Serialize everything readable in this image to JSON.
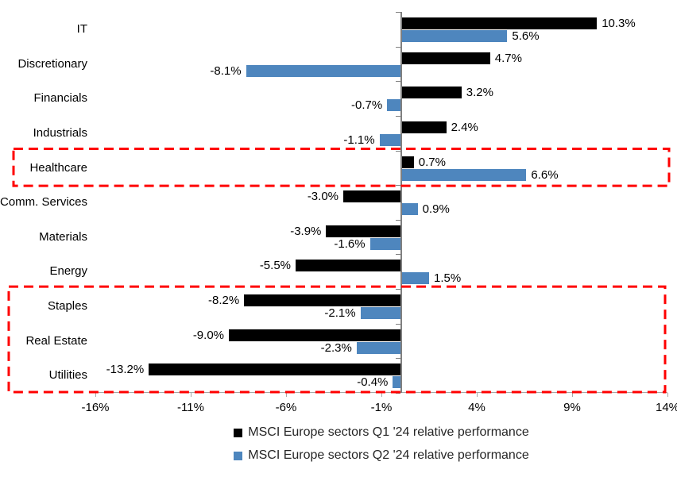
{
  "chart_data": {
    "type": "bar",
    "orientation": "horizontal",
    "title": "",
    "xlabel": "",
    "ylabel": "",
    "grid": false,
    "legend_position": "bottom",
    "categories": [
      "IT",
      "Discretionary",
      "Financials",
      "Industrials",
      "Healthcare",
      "Comm. Services",
      "Materials",
      "Energy",
      "Staples",
      "Real Estate",
      "Utilities"
    ],
    "series": [
      {
        "name": "MSCI Europe sectors Q1 '24 relative performance",
        "color": "#000000",
        "values": [
          10.3,
          4.7,
          3.2,
          2.4,
          0.7,
          -3.0,
          -3.9,
          -5.5,
          -8.2,
          -9.0,
          -13.2
        ],
        "labels": [
          "10.3%",
          "4.7%",
          "3.2%",
          "2.4%",
          "0.7%",
          "-3.0%",
          "-3.9%",
          "-5.5%",
          "-8.2%",
          "-9.0%",
          "-13.2%"
        ]
      },
      {
        "name": "MSCI Europe sectors Q2 '24 relative performance",
        "color": "#4E86BE",
        "values": [
          5.6,
          -8.1,
          -0.7,
          -1.1,
          6.6,
          0.9,
          -1.6,
          1.5,
          -2.1,
          -2.3,
          -0.4
        ],
        "labels": [
          "5.6%",
          "-8.1%",
          "-0.7%",
          "-1.1%",
          "6.6%",
          "0.9%",
          "-1.6%",
          "1.5%",
          "-2.1%",
          "-2.3%",
          "-0.4%"
        ]
      }
    ],
    "x_axis": {
      "min": -16,
      "max": 14,
      "tick_values": [
        -16,
        -11,
        -6,
        -1,
        4,
        9,
        14
      ],
      "tick_labels": [
        "-16%",
        "-11%",
        "-6%",
        "-1%",
        "4%",
        "9%",
        "14%"
      ]
    },
    "highlights": [
      {
        "name": "healthcare-highlight",
        "categories": [
          "Healthcare"
        ],
        "color": "#FF0000"
      },
      {
        "name": "defensives-highlight",
        "categories": [
          "Staples",
          "Real Estate",
          "Utilities"
        ],
        "color": "#FF0000"
      }
    ]
  }
}
